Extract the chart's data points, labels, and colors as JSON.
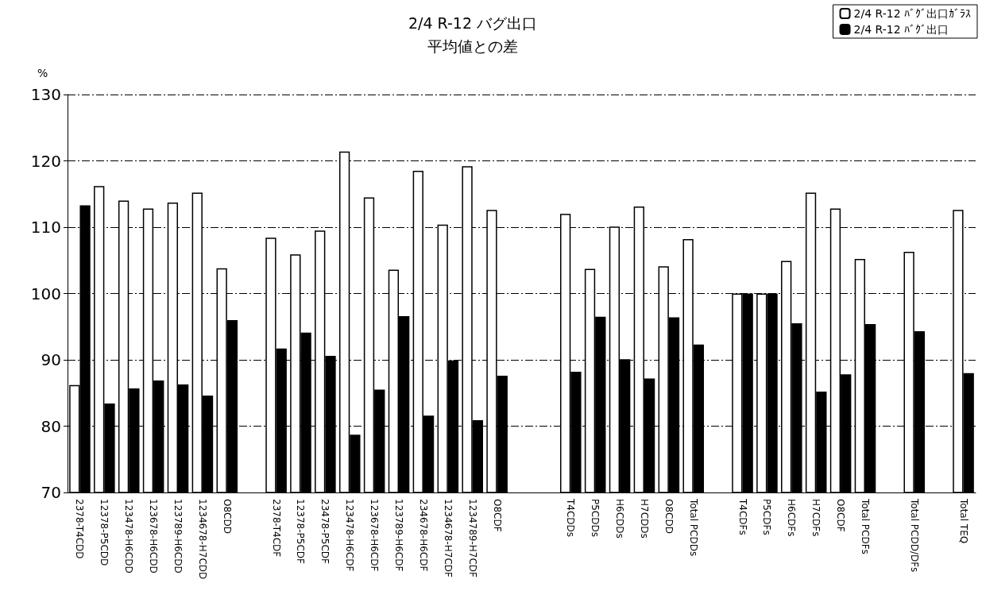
{
  "chart_data": {
    "type": "bar",
    "title": "2/4 R-12 バグ出口",
    "subtitle": "平均値との差",
    "ylabel": "%",
    "categories": [
      "2378-T4CDD",
      "12378-P5CDD",
      "123478-H6CDD",
      "123678-H6CDD",
      "123789-H6CDD",
      "1234678-H7CDD",
      "O8CDD",
      null,
      "2378-T4CDF",
      "12378-P5CDF",
      "23478-P5CDF",
      "123478-H6CDF",
      "123678-H6CDF",
      "123789-H6CDF",
      "234678-H6CDF",
      "1234678-H7CDF",
      "1234789-H7CDF",
      "O8CDF",
      null,
      null,
      "T4CDDs",
      "P5CDDs",
      "H6CDDs",
      "H7CDDs",
      "O8CDD",
      "Total PCDDs",
      null,
      "T4CDFs",
      "P5CDFs",
      "H6CDFs",
      "H7CDFs",
      "O8CDF",
      "Total PCDFs",
      null,
      "Total PCDD/DFs",
      null,
      "Total TEQ"
    ],
    "series": [
      {
        "name": "2/4 R-12 ﾊﾞｸﾞ出口ｶﾞﾗｽ",
        "color": "#ffffff",
        "values": [
          86.2,
          116.2,
          114.0,
          112.8,
          113.7,
          115.2,
          103.8,
          null,
          108.4,
          105.9,
          109.5,
          121.4,
          114.5,
          103.6,
          118.5,
          110.4,
          119.2,
          112.6,
          null,
          null,
          112.0,
          103.7,
          110.1,
          113.1,
          104.1,
          108.2,
          null,
          100,
          100,
          104.9,
          115.2,
          112.8,
          105.2,
          null,
          106.3,
          null,
          112.6
        ]
      },
      {
        "name": "2/4 R-12 ﾊﾞｸﾞ出口",
        "color": "#000000",
        "values": [
          113.3,
          83.4,
          85.7,
          86.9,
          86.3,
          84.6,
          96.0,
          null,
          91.7,
          94.1,
          90.6,
          78.7,
          85.5,
          96.6,
          81.6,
          89.9,
          80.9,
          87.6,
          null,
          null,
          88.2,
          96.5,
          90.1,
          87.2,
          96.4,
          92.3,
          null,
          100,
          100,
          95.5,
          85.2,
          87.8,
          95.4,
          null,
          94.3,
          null,
          88.0
        ]
      }
    ],
    "ylim": [
      70,
      130
    ],
    "yticks": [
      70,
      80,
      90,
      100,
      110,
      120,
      130
    ],
    "grid": "y",
    "legend": "top right"
  }
}
